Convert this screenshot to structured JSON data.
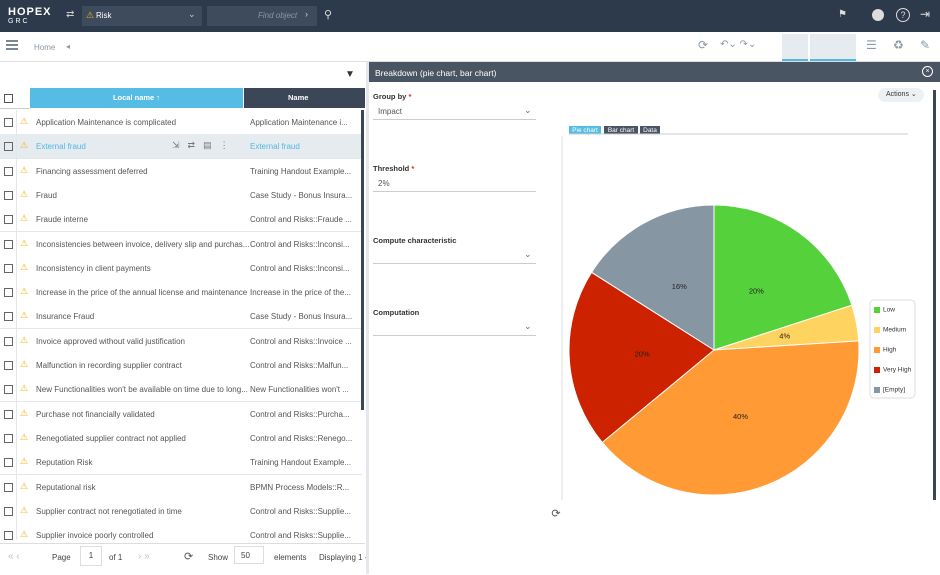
{
  "header": {
    "logo": "HOPEX",
    "sublogo": "GRC",
    "search": "Risk",
    "find_placeholder": "Find object"
  },
  "toolbar": {
    "home": "Home"
  },
  "table": {
    "columns": [
      "Local name",
      "Name"
    ],
    "rows": [
      [
        "Application Maintenance is complicated",
        "Application Maintenance i..."
      ],
      [
        "External fraud",
        "External fraud"
      ],
      [
        "Financing assessment deferred",
        "Training Handout Example..."
      ],
      [
        "Fraud",
        "Case Study - Bonus Insura..."
      ],
      [
        "Fraude interne",
        "Control and Risks::Fraude ..."
      ],
      [
        "Inconsistencies between invoice, delivery slip and purchas...",
        "Control and Risks::Inconsi..."
      ],
      [
        "Inconsistency in client payments",
        "Control and Risks::Inconsi..."
      ],
      [
        "Increase in the price of the annual license and maintenance",
        "Increase in the price of the..."
      ],
      [
        "Insurance Fraud",
        "Case Study - Bonus Insura..."
      ],
      [
        "Invoice approved without valid justification",
        "Control and Risks::Invoice ..."
      ],
      [
        "Malfunction in recording supplier contract",
        "Control and Risks::Malfun..."
      ],
      [
        "New Functionalities won't be available on time due to long...",
        "New Functionalities won't ..."
      ],
      [
        "Purchase not financially validated",
        "Control and Risks::Purcha..."
      ],
      [
        "Renegotiated supplier contract not applied",
        "Control and Risks::Renego..."
      ],
      [
        "Reputation Risk",
        "Training Handout Example..."
      ],
      [
        "Reputational risk",
        "BPMN Process Models::R..."
      ],
      [
        "Supplier contract not renegotiated in time",
        "Control and Risks::Supplie..."
      ],
      [
        "Supplier invoice poorly controlled",
        "Control and Risks::Supplie..."
      ]
    ]
  },
  "pager": {
    "page": "Page",
    "page_value": "1",
    "of": "of 1",
    "show": "Show",
    "show_value": "50",
    "elements": "elements",
    "displaying": "Displaying 1 -"
  },
  "panel": {
    "title": "Breakdown (pie chart, bar chart)",
    "actions": "Actions",
    "fields": [
      {
        "label": "Group by",
        "required": "*",
        "value": "Impact"
      },
      {
        "label": "Threshold",
        "required": "*",
        "value": "2%"
      },
      {
        "label": "Compute characteristic"
      },
      {
        "label": "Computation"
      }
    ],
    "tabs": [
      "Pie chart",
      "Bar chart",
      "Data"
    ]
  },
  "chart_data": {
    "type": "pie",
    "categories": [
      "Low",
      "Medium",
      "High",
      "Very High",
      "[Empty]"
    ],
    "values": [
      20,
      4,
      40,
      20,
      16
    ],
    "value_labels": [
      "20%",
      "4%",
      "40%",
      "20%",
      "16%"
    ],
    "colors": [
      "#55d13b",
      "#ffd35f",
      "#ff9a35",
      "#cc2200",
      "#8796a3"
    ]
  }
}
